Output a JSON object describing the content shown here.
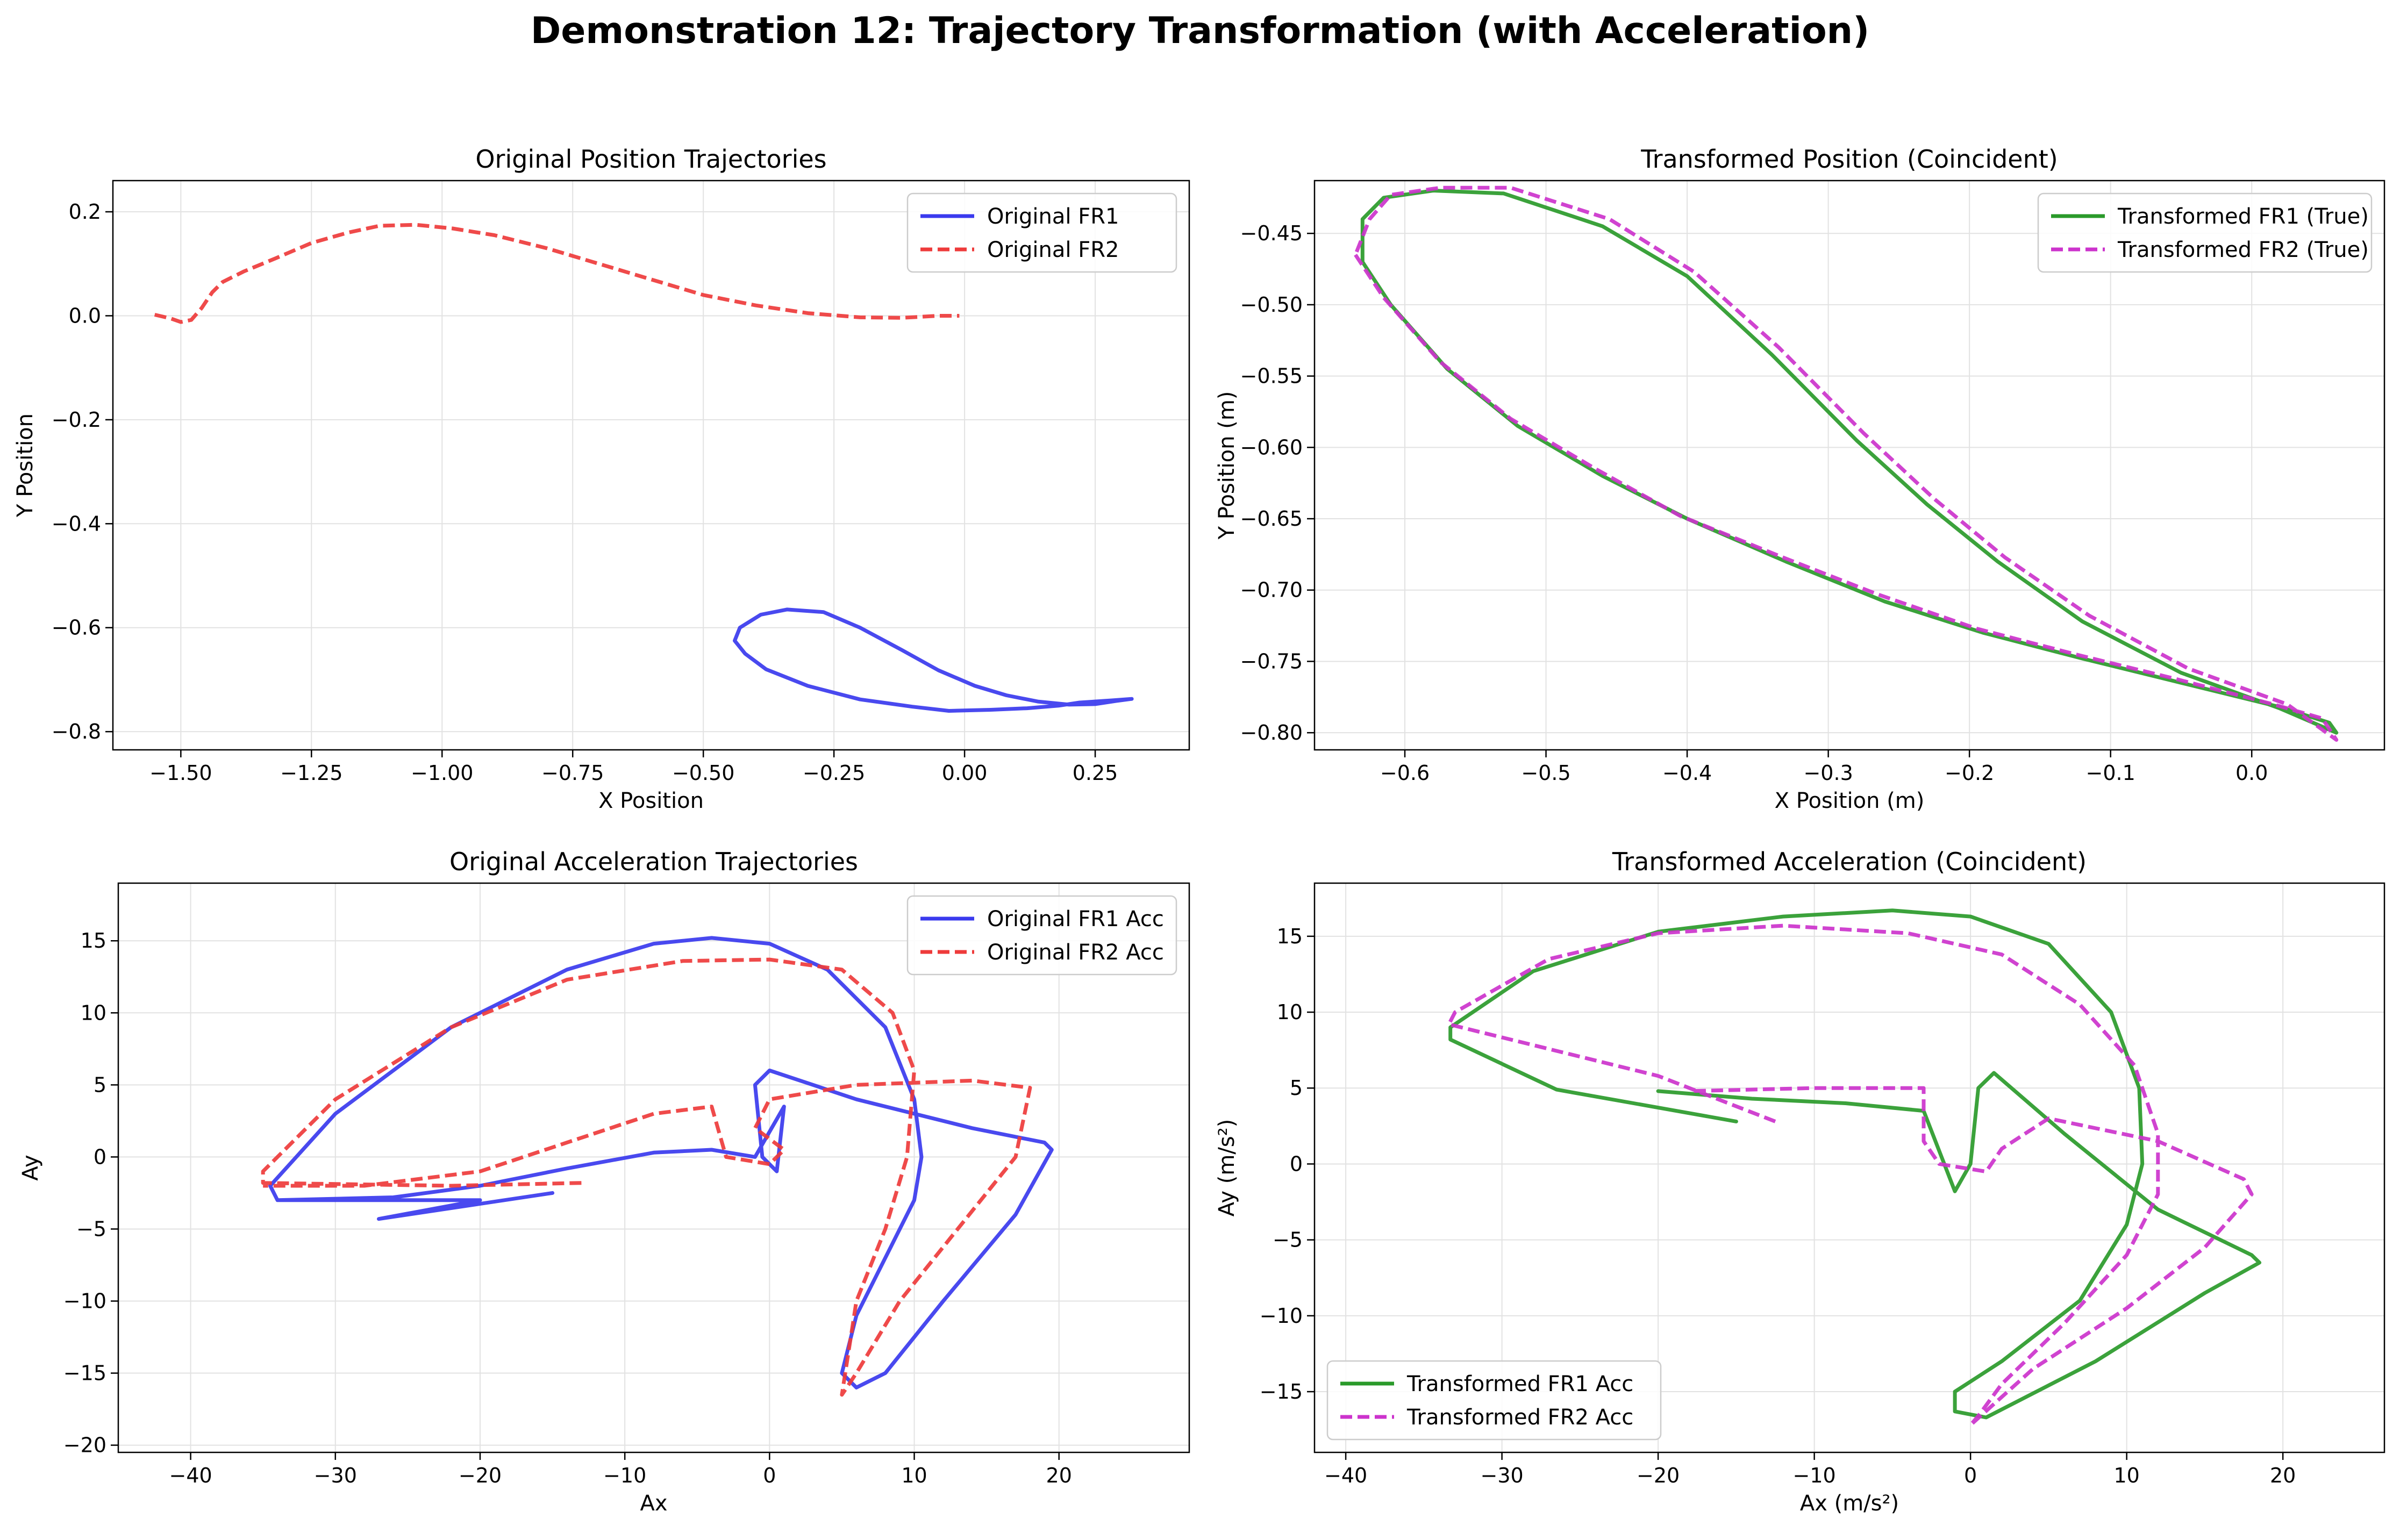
{
  "figure_title": "Demonstration 12: Trajectory Transformation (with Acceleration)",
  "chart_data": [
    {
      "type": "line",
      "title": "Original Position Trajectories",
      "xlabel": "X Position",
      "ylabel": "Y Position",
      "xlim": [
        -1.63,
        0.43
      ],
      "ylim": [
        -0.835,
        0.26
      ],
      "xticks": [
        -1.5,
        -1.25,
        -1.0,
        -0.75,
        -0.5,
        -0.25,
        0.0,
        0.25
      ],
      "xtick_labels": [
        "−1.50",
        "−1.25",
        "−1.00",
        "−0.75",
        "−0.50",
        "−0.25",
        "0.00",
        "0.25"
      ],
      "yticks": [
        0.2,
        0.0,
        -0.2,
        -0.4,
        -0.6,
        -0.8
      ],
      "ytick_labels": [
        "0.2",
        "0.0",
        "−0.2",
        "−0.4",
        "−0.6",
        "−0.8"
      ],
      "grid": true,
      "legend": "upper-right",
      "series": [
        {
          "name": "Original FR1",
          "color": "#3a3aee",
          "dash": "solid",
          "x": [
            0.32,
            0.28,
            0.22,
            0.18,
            0.12,
            0.05,
            -0.03,
            -0.1,
            -0.2,
            -0.3,
            -0.38,
            -0.42,
            -0.44,
            -0.43,
            -0.39,
            -0.34,
            -0.27,
            -0.2,
            -0.12,
            -0.05,
            0.02,
            0.08,
            0.14,
            0.2,
            0.25,
            0.29,
            0.32
          ],
          "y": [
            -0.737,
            -0.74,
            -0.744,
            -0.75,
            -0.755,
            -0.758,
            -0.76,
            -0.752,
            -0.738,
            -0.712,
            -0.68,
            -0.65,
            -0.625,
            -0.6,
            -0.575,
            -0.565,
            -0.57,
            -0.6,
            -0.643,
            -0.682,
            -0.712,
            -0.73,
            -0.742,
            -0.748,
            -0.747,
            -0.741,
            -0.737
          ]
        },
        {
          "name": "Original FR2",
          "color": "#ee3b3b",
          "dash": "dashed",
          "x": [
            -1.55,
            -1.52,
            -1.5,
            -1.48,
            -1.46,
            -1.44,
            -1.42,
            -1.38,
            -1.32,
            -1.25,
            -1.18,
            -1.12,
            -1.05,
            -0.98,
            -0.9,
            -0.8,
            -0.7,
            -0.6,
            -0.5,
            -0.4,
            -0.3,
            -0.2,
            -0.12,
            -0.05,
            -0.01
          ],
          "y": [
            0.002,
            -0.005,
            -0.012,
            -0.008,
            0.015,
            0.045,
            0.065,
            0.085,
            0.11,
            0.14,
            0.16,
            0.173,
            0.175,
            0.168,
            0.155,
            0.13,
            0.1,
            0.07,
            0.04,
            0.02,
            0.005,
            -0.003,
            -0.004,
            0.0,
            0.0
          ]
        }
      ]
    },
    {
      "type": "line",
      "title": "Transformed Position (Coincident)",
      "xlabel": "X Position (m)",
      "ylabel": "Y Position (m)",
      "xlim": [
        -0.664,
        0.094
      ],
      "ylim": [
        -0.812,
        -0.413
      ],
      "xticks": [
        -0.6,
        -0.5,
        -0.4,
        -0.3,
        -0.2,
        -0.1,
        0.0
      ],
      "xtick_labels": [
        "−0.6",
        "−0.5",
        "−0.4",
        "−0.3",
        "−0.2",
        "−0.1",
        "0.0"
      ],
      "yticks": [
        -0.45,
        -0.5,
        -0.55,
        -0.6,
        -0.65,
        -0.7,
        -0.75,
        -0.8
      ],
      "ytick_labels": [
        "−0.45",
        "−0.50",
        "−0.55",
        "−0.60",
        "−0.65",
        "−0.70",
        "−0.75",
        "−0.80"
      ],
      "grid": true,
      "legend": "upper-right",
      "series": [
        {
          "name": "Transformed FR1 (True)",
          "color": "#2a9a2a",
          "dash": "solid",
          "x": [
            -0.63,
            -0.61,
            -0.57,
            -0.52,
            -0.46,
            -0.4,
            -0.33,
            -0.26,
            -0.19,
            -0.12,
            -0.05,
            0.02,
            0.055,
            0.06,
            0.02,
            -0.05,
            -0.12,
            -0.18,
            -0.23,
            -0.28,
            -0.34,
            -0.4,
            -0.46,
            -0.53,
            -0.58,
            -0.615,
            -0.63,
            -0.63
          ],
          "y": [
            -0.47,
            -0.5,
            -0.545,
            -0.585,
            -0.62,
            -0.65,
            -0.68,
            -0.708,
            -0.73,
            -0.748,
            -0.765,
            -0.782,
            -0.793,
            -0.8,
            -0.783,
            -0.758,
            -0.722,
            -0.68,
            -0.64,
            -0.595,
            -0.535,
            -0.48,
            -0.445,
            -0.422,
            -0.42,
            -0.425,
            -0.44,
            -0.47
          ]
        },
        {
          "name": "Transformed FR2 (True)",
          "color": "#cc33cc",
          "dash": "dashed",
          "x": [
            -0.635,
            -0.615,
            -0.575,
            -0.525,
            -0.465,
            -0.405,
            -0.335,
            -0.265,
            -0.195,
            -0.125,
            -0.055,
            0.015,
            0.05,
            0.06,
            0.025,
            -0.045,
            -0.115,
            -0.175,
            -0.225,
            -0.275,
            -0.335,
            -0.395,
            -0.455,
            -0.525,
            -0.575,
            -0.61,
            -0.625,
            -0.635
          ],
          "y": [
            -0.465,
            -0.495,
            -0.54,
            -0.58,
            -0.615,
            -0.648,
            -0.676,
            -0.703,
            -0.727,
            -0.745,
            -0.762,
            -0.78,
            -0.79,
            -0.805,
            -0.78,
            -0.755,
            -0.718,
            -0.677,
            -0.636,
            -0.59,
            -0.53,
            -0.477,
            -0.44,
            -0.418,
            -0.418,
            -0.423,
            -0.44,
            -0.465
          ]
        }
      ]
    },
    {
      "type": "line",
      "title": "Original Acceleration Trajectories",
      "xlabel": "Ax",
      "ylabel": "Ay",
      "xlim": [
        -45,
        29
      ],
      "ylim": [
        -20.5,
        19
      ],
      "xticks": [
        -40,
        -30,
        -20,
        -10,
        0,
        10,
        20
      ],
      "xtick_labels": [
        "−40",
        "−30",
        "−20",
        "−10",
        "0",
        "10",
        "20"
      ],
      "yticks": [
        15,
        10,
        5,
        0,
        -5,
        -10,
        -15,
        -20
      ],
      "ytick_labels": [
        "15",
        "10",
        "5",
        "0",
        "−5",
        "−10",
        "−15",
        "−20"
      ],
      "grid": true,
      "legend": "upper-right",
      "series": [
        {
          "name": "Original FR1 Acc",
          "color": "#3a3aee",
          "dash": "solid",
          "x": [
            -15,
            -27,
            -20,
            -34,
            -34.5,
            -30,
            -22,
            -14,
            -8,
            -4,
            0,
            4,
            8,
            10,
            10.5,
            10,
            8,
            6,
            5,
            6,
            8,
            12,
            17,
            19.5,
            19,
            14,
            6,
            0,
            -1,
            -0.5,
            0.5,
            1,
            -1,
            -4,
            -8,
            -14,
            -20,
            -26,
            -34
          ],
          "y": [
            -2.5,
            -4.3,
            -3,
            -3,
            -2,
            3,
            9,
            13,
            14.8,
            15.2,
            14.8,
            13,
            9,
            4,
            0,
            -3,
            -7,
            -11,
            -15,
            -16,
            -15,
            -10,
            -4,
            0.5,
            1,
            2,
            4,
            6,
            5,
            0,
            -1,
            3.5,
            0,
            0.5,
            0.3,
            -0.8,
            -2,
            -2.8,
            -3
          ]
        },
        {
          "name": "Original FR2 Acc",
          "color": "#ee3b3b",
          "dash": "dashed",
          "x": [
            -13,
            -22,
            -35,
            -35,
            -30,
            -22,
            -14,
            -6,
            0,
            5,
            8.5,
            10,
            9.5,
            8,
            6,
            5,
            6,
            9,
            13,
            17,
            18,
            14,
            6,
            0,
            -1,
            1,
            0,
            -3,
            -4,
            -8,
            -14,
            -20,
            -28,
            -35
          ],
          "y": [
            -1.8,
            -2,
            -1.8,
            -1,
            4,
            9,
            12.3,
            13.6,
            13.7,
            13,
            10,
            6,
            0,
            -5,
            -10,
            -16.5,
            -15,
            -10,
            -5,
            0,
            4.8,
            5.3,
            5,
            4,
            2,
            0.5,
            -0.5,
            0,
            3.5,
            3,
            1,
            -1,
            -2,
            -2
          ]
        }
      ]
    },
    {
      "type": "line",
      "title": "Transformed Acceleration (Coincident)",
      "xlabel": "Ax (m/s²)",
      "ylabel": "Ay (m/s²)",
      "xlim": [
        -42,
        26.5
      ],
      "ylim": [
        -19,
        18.5
      ],
      "xticks": [
        -40,
        -30,
        -20,
        -10,
        0,
        10,
        20
      ],
      "xtick_labels": [
        "−40",
        "−30",
        "−20",
        "−10",
        "0",
        "10",
        "20"
      ],
      "yticks": [
        15,
        10,
        5,
        0,
        -5,
        -10,
        -15
      ],
      "ytick_labels": [
        "15",
        "10",
        "5",
        "0",
        "−5",
        "−10",
        "−15"
      ],
      "grid": true,
      "legend": "lower-left",
      "series": [
        {
          "name": "Transformed FR1 Acc",
          "color": "#2a9a2a",
          "dash": "solid",
          "x": [
            -15,
            -26.5,
            -33.3,
            -33.3,
            -28,
            -20,
            -12,
            -5,
            0,
            5,
            9,
            10.8,
            11,
            10,
            7,
            2,
            -1,
            -1,
            1,
            8,
            15,
            18.5,
            18,
            12,
            6,
            1.5,
            0.5,
            0,
            -1,
            -3,
            -8,
            -14,
            -20
          ],
          "y": [
            2.8,
            4.9,
            8.2,
            9,
            12.7,
            15.3,
            16.3,
            16.7,
            16.3,
            14.5,
            10,
            5,
            0,
            -4,
            -9,
            -13,
            -15,
            -16.3,
            -16.7,
            -13,
            -8.5,
            -6.5,
            -6,
            -3,
            2,
            6,
            5,
            0,
            -1.8,
            3.5,
            4,
            4.3,
            4.8
          ]
        },
        {
          "name": "Transformed FR2 Acc",
          "color": "#cc33cc",
          "dash": "dashed",
          "x": [
            -12.5,
            -20,
            -33.4,
            -33,
            -27,
            -20,
            -12,
            -4,
            2,
            7,
            10.5,
            12,
            12,
            10,
            6,
            2,
            0.5,
            0,
            4,
            10,
            15,
            18,
            17.5,
            12,
            5,
            2,
            1,
            -2,
            -3,
            -3,
            -10,
            -18
          ],
          "y": [
            2.8,
            5.8,
            9.2,
            10,
            13.5,
            15.2,
            15.7,
            15.2,
            13.8,
            10.5,
            6.5,
            2,
            -2,
            -6,
            -10.5,
            -14.5,
            -16.6,
            -17.2,
            -13.5,
            -9.5,
            -5.5,
            -2,
            -1,
            1.5,
            3,
            1,
            -0.5,
            0,
            1.5,
            5,
            5,
            4.8
          ]
        }
      ]
    }
  ]
}
